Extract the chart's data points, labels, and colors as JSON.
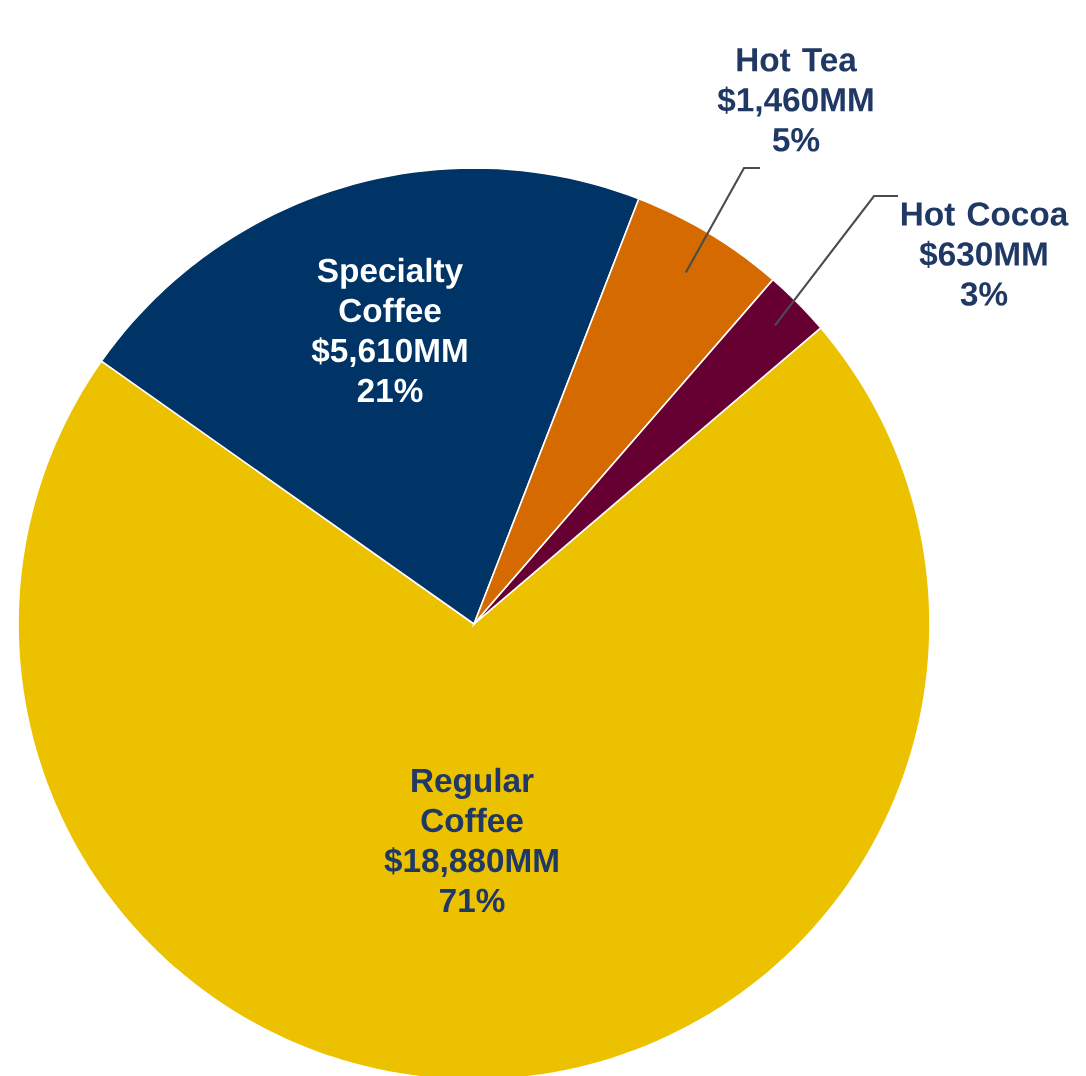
{
  "chart_data": {
    "type": "pie",
    "categories": [
      "Regular Coffee",
      "Specialty Coffee",
      "Hot Tea",
      "Hot Cocoa"
    ],
    "values": [
      18880,
      5610,
      1460,
      630
    ],
    "colors": [
      "#ecc100",
      "#003366",
      "#d46a00",
      "#660033"
    ],
    "value_labels": [
      "$18,880MM",
      "$5,610MM",
      "$1,460MM",
      "$630MM"
    ],
    "annotations": [
      "71%",
      "21%",
      "5%",
      "3%"
    ]
  }
}
